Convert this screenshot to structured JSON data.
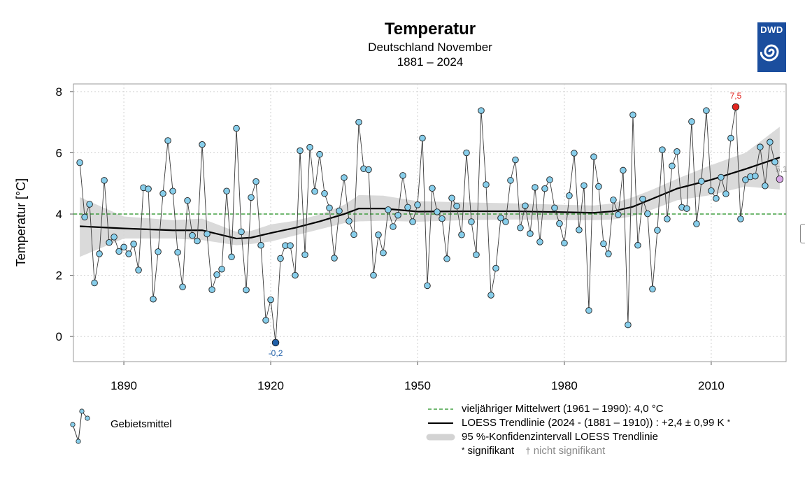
{
  "title": "Temperatur",
  "subtitle": "Deutschland November",
  "period": "1881 – 2024",
  "logo_text": "DWD",
  "colors": {
    "point_fill": "#87ceeb",
    "trend": "#000000",
    "mean": "#1f8f1f",
    "ci_band": "#d3d3d3",
    "min_marker": "#1f5fa8",
    "max_marker": "#e32621",
    "last_marker": "#d8a6e6",
    "logo_bg": "#1b4e9e"
  },
  "chart_data": {
    "type": "line",
    "title": "Temperatur",
    "ylabel": "Temperatur [°C]",
    "xlabel": "",
    "xlim": [
      1879.7,
      2025.3
    ],
    "ylim": [
      -0.82,
      8.25
    ],
    "x_ticks": [
      1890,
      1920,
      1950,
      1980,
      2010
    ],
    "y_ticks": [
      0,
      2,
      4,
      6,
      8
    ],
    "grid": true,
    "years_start": 1881,
    "values": [
      5.68,
      3.9,
      4.32,
      1.75,
      2.7,
      5.1,
      3.07,
      3.25,
      2.78,
      2.92,
      2.7,
      3.02,
      2.17,
      4.86,
      4.82,
      1.22,
      2.77,
      4.67,
      6.4,
      4.75,
      2.75,
      1.62,
      4.44,
      3.3,
      3.12,
      6.27,
      3.35,
      1.53,
      2.02,
      2.2,
      4.75,
      2.6,
      6.8,
      3.42,
      1.52,
      4.54,
      5.06,
      2.98,
      0.53,
      1.2,
      -0.2,
      2.55,
      2.97,
      2.97,
      2.0,
      6.07,
      2.67,
      6.18,
      4.74,
      5.95,
      4.67,
      4.2,
      2.56,
      4.1,
      5.19,
      3.77,
      3.33,
      7.0,
      5.48,
      5.45,
      2.0,
      3.32,
      2.73,
      4.14,
      3.59,
      3.96,
      5.26,
      4.22,
      3.75,
      4.3,
      6.48,
      1.66,
      4.84,
      4.07,
      3.85,
      2.54,
      4.52,
      4.26,
      3.32,
      6.0,
      3.75,
      2.67,
      7.38,
      4.96,
      1.35,
      2.23,
      3.87,
      3.75,
      5.1,
      5.77,
      3.55,
      4.27,
      3.36,
      4.87,
      3.09,
      4.83,
      5.12,
      4.2,
      3.69,
      3.05,
      4.6,
      5.99,
      3.48,
      4.93,
      0.85,
      5.87,
      4.9,
      3.03,
      2.7,
      4.46,
      3.98,
      5.43,
      0.38,
      7.24,
      2.98,
      4.49,
      4.01,
      1.55,
      3.47,
      6.1,
      3.84,
      5.57,
      6.04,
      4.22,
      4.18,
      7.02,
      3.68,
      5.07,
      7.38,
      4.76,
      4.51,
      5.2,
      4.66,
      6.48,
      7.5,
      3.84,
      5.12,
      5.22,
      5.24,
      6.19,
      4.92,
      6.35,
      5.7,
      5.14
    ],
    "series": [
      {
        "name": "Gebietsmittel",
        "type": "line+points"
      },
      {
        "name": "LOESS Trendlinie",
        "x": [
          1881,
          1890,
          1900,
          1906,
          1913,
          1916,
          1920,
          1925,
          1930,
          1935,
          1938,
          1943,
          1950,
          1960,
          1970,
          1980,
          1986,
          1990,
          1994,
          1998,
          2003,
          2010,
          2017,
          2024
        ],
        "values": [
          3.6,
          3.53,
          3.47,
          3.47,
          3.2,
          3.23,
          3.38,
          3.55,
          3.76,
          4.0,
          4.18,
          4.18,
          4.08,
          4.09,
          4.09,
          4.06,
          4.04,
          4.09,
          4.24,
          4.5,
          4.83,
          5.12,
          5.47,
          5.85
        ]
      },
      {
        "name": "95 %-Konfidenzintervall LOESS Trendlinie",
        "upper": [
          4.55,
          3.92,
          3.8,
          3.85,
          3.42,
          3.45,
          3.66,
          3.78,
          3.98,
          4.3,
          4.62,
          4.6,
          4.42,
          4.38,
          4.35,
          4.3,
          4.28,
          4.35,
          4.55,
          4.8,
          5.15,
          5.6,
          6.0,
          6.85
        ],
        "lower": [
          2.6,
          3.2,
          3.2,
          3.15,
          2.98,
          3.02,
          3.1,
          3.3,
          3.5,
          3.7,
          3.76,
          3.78,
          3.75,
          3.8,
          3.82,
          3.8,
          3.8,
          3.82,
          3.93,
          4.15,
          4.45,
          4.62,
          4.9,
          4.8
        ]
      },
      {
        "name": "vieljähriger Mittelwert (1961 – 1990)",
        "value": 4.0
      }
    ],
    "annotations": [
      {
        "label": "-0,2",
        "x": 1921,
        "y": -0.2,
        "kind": "minimum"
      },
      {
        "label": "7,5",
        "x": 2015,
        "y": 7.5,
        "kind": "maximum"
      },
      {
        "label": "5,1",
        "x": 2024,
        "y": 5.14,
        "kind": "last"
      }
    ]
  },
  "legend": {
    "points_label": "Gebietsmittel",
    "mean_label": "vieljähriger Mittelwert (1961 – 1990): 4,0 °C",
    "trend_label": "LOESS Trendlinie (2024 - (1881 – 1910)) : +2,4 ± 0,99 K",
    "trend_mark": "*",
    "ci_label": "95 %-Konfidenzintervall LOESS Trendlinie",
    "sig_mark": "*",
    "sig_label": "signifikant",
    "nonsig_mark": "†",
    "nonsig_label": "nicht signifikant"
  }
}
